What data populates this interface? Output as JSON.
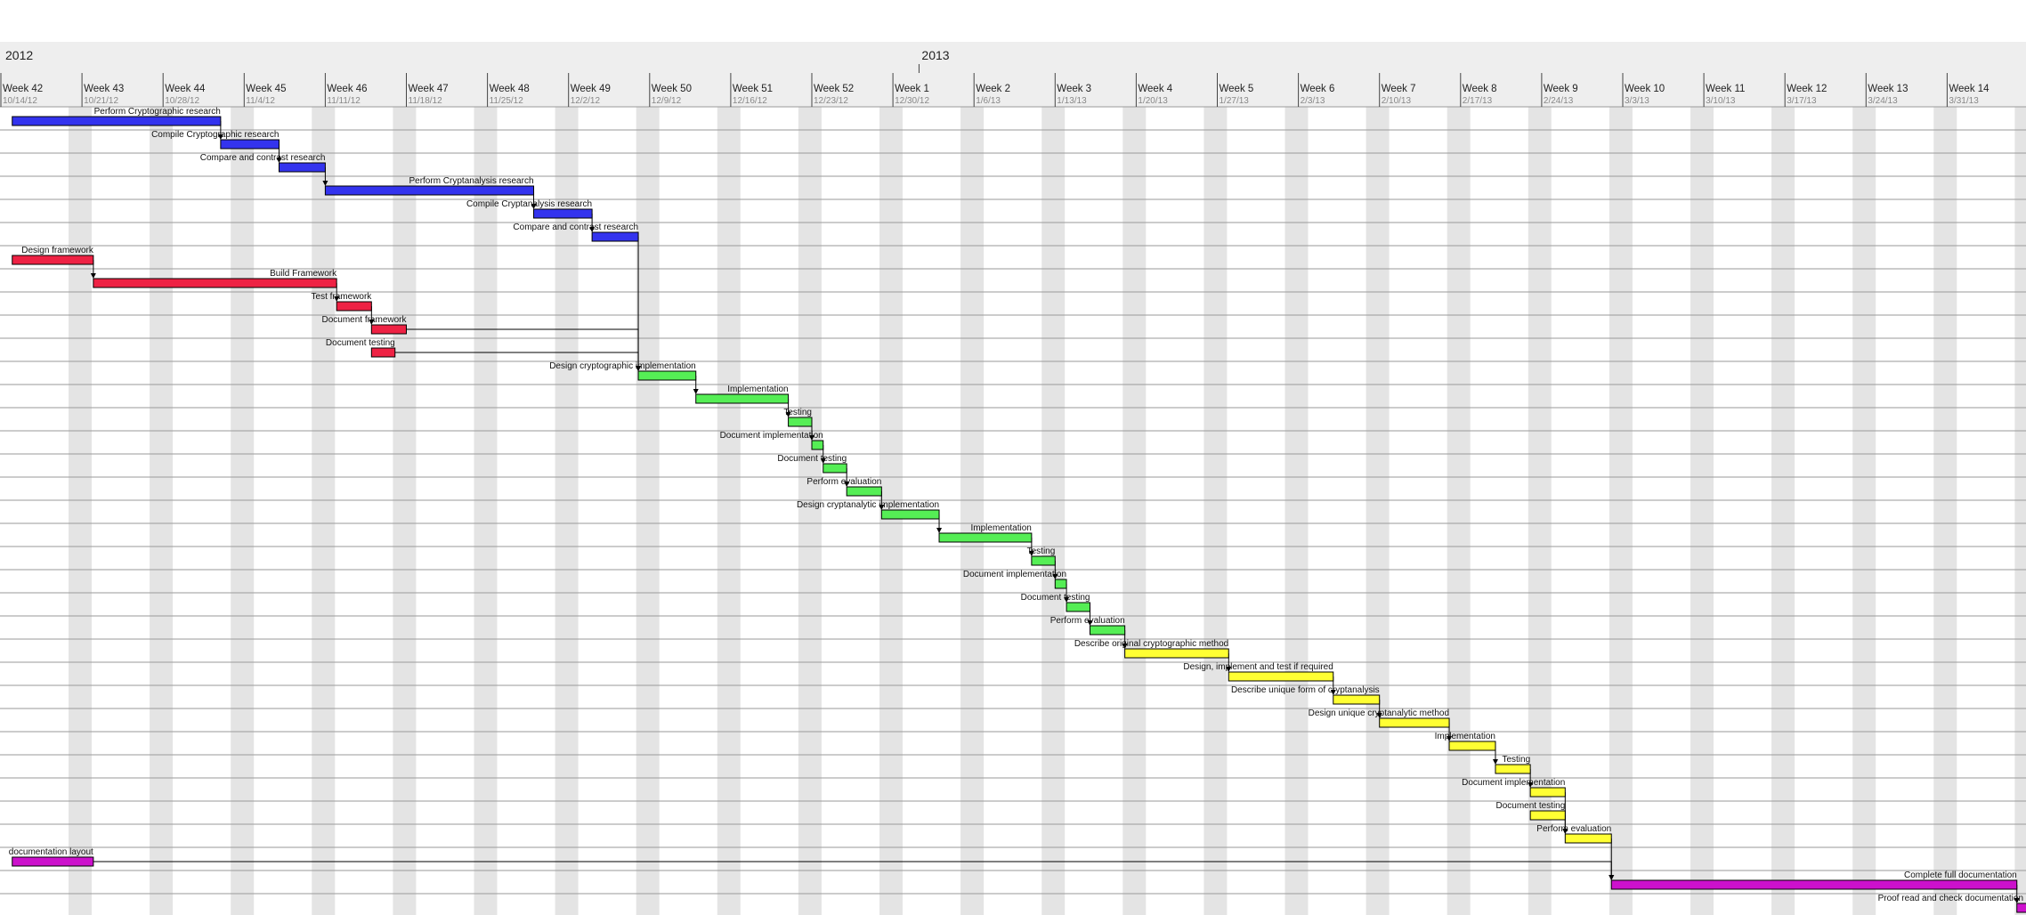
{
  "header": {
    "years": [
      {
        "label": "2012",
        "week_index": 0
      },
      {
        "label": "2013",
        "week_index": 11.3
      }
    ]
  },
  "colors": {
    "research": "#3333ee",
    "framework": "#ee2244",
    "implementation": "#55ee55",
    "documentation": "#ffff33",
    "final": "#cc11cc",
    "weekend_stripe": "#e4e4e4",
    "grid_line": "#9a9a9a",
    "header_bg": "#eeeeee"
  },
  "chart_data": {
    "type": "gantt",
    "x_unit": "weeks from Week 42 (10/14/12)",
    "weeks": [
      {
        "label": "Week 42",
        "date": "10/14/12"
      },
      {
        "label": "Week 43",
        "date": "10/21/12"
      },
      {
        "label": "Week 44",
        "date": "10/28/12"
      },
      {
        "label": "Week 45",
        "date": "11/4/12"
      },
      {
        "label": "Week 46",
        "date": "11/11/12"
      },
      {
        "label": "Week 47",
        "date": "11/18/12"
      },
      {
        "label": "Week 48",
        "date": "11/25/12"
      },
      {
        "label": "Week 49",
        "date": "12/2/12"
      },
      {
        "label": "Week 50",
        "date": "12/9/12"
      },
      {
        "label": "Week 51",
        "date": "12/16/12"
      },
      {
        "label": "Week 52",
        "date": "12/23/12"
      },
      {
        "label": "Week 1",
        "date": "12/30/12"
      },
      {
        "label": "Week 2",
        "date": "1/6/13"
      },
      {
        "label": "Week 3",
        "date": "1/13/13"
      },
      {
        "label": "Week 4",
        "date": "1/20/13"
      },
      {
        "label": "Week 5",
        "date": "1/27/13"
      },
      {
        "label": "Week 6",
        "date": "2/3/13"
      },
      {
        "label": "Week 7",
        "date": "2/10/13"
      },
      {
        "label": "Week 8",
        "date": "2/17/13"
      },
      {
        "label": "Week 9",
        "date": "2/24/13"
      },
      {
        "label": "Week 10",
        "date": "3/3/13"
      },
      {
        "label": "Week 11",
        "date": "3/10/13"
      },
      {
        "label": "Week 12",
        "date": "3/17/13"
      },
      {
        "label": "Week 13",
        "date": "3/24/13"
      },
      {
        "label": "Week 14",
        "date": "3/31/13"
      }
    ],
    "tasks": [
      {
        "name": "Perform Cryptographic research",
        "start": 0.14,
        "end": 2.71,
        "group": "research",
        "dep": 1
      },
      {
        "name": "Compile Cryptographic research",
        "start": 2.71,
        "end": 3.43,
        "group": "research",
        "dep": 2
      },
      {
        "name": "Compare and contrast research",
        "start": 3.43,
        "end": 4.0,
        "group": "research",
        "dep": 3
      },
      {
        "name": "Perform Cryptanalysis research",
        "start": 4.0,
        "end": 6.57,
        "group": "research",
        "dep": 4
      },
      {
        "name": "Compile Cryptanalysis research",
        "start": 6.57,
        "end": 7.29,
        "group": "research",
        "dep": 5
      },
      {
        "name": "Compare and contrast research",
        "start": 7.29,
        "end": 7.86,
        "group": "research",
        "dep": 11
      },
      {
        "name": "Design framework",
        "start": 0.14,
        "end": 1.14,
        "group": "framework",
        "dep": 7
      },
      {
        "name": "Build Framework",
        "start": 1.14,
        "end": 4.14,
        "group": "framework",
        "dep": 8
      },
      {
        "name": "Test framework",
        "start": 4.14,
        "end": 4.57,
        "group": "framework",
        "dep": 9
      },
      {
        "name": "Document framework",
        "start": 4.57,
        "end": 5.0,
        "group": "framework",
        "dep": 11
      },
      {
        "name": "Document testing",
        "start": 4.57,
        "end": 4.86,
        "group": "framework",
        "dep": 11
      },
      {
        "name": "Design cryptographic implementation",
        "start": 7.86,
        "end": 8.57,
        "group": "implementation",
        "dep": 12
      },
      {
        "name": "Implementation",
        "start": 8.57,
        "end": 9.71,
        "group": "implementation",
        "dep": 13
      },
      {
        "name": "Testing",
        "start": 9.71,
        "end": 10.0,
        "group": "implementation",
        "dep": 14
      },
      {
        "name": "Document implementation",
        "start": 10.0,
        "end": 10.14,
        "group": "implementation",
        "dep": 15
      },
      {
        "name": "Document testing",
        "start": 10.14,
        "end": 10.43,
        "group": "implementation",
        "dep": 16
      },
      {
        "name": "Perform evaluation",
        "start": 10.43,
        "end": 10.86,
        "group": "implementation",
        "dep": 17
      },
      {
        "name": "Design cryptanalytic implementation",
        "start": 10.86,
        "end": 11.57,
        "group": "implementation",
        "dep": 18
      },
      {
        "name": "Implementation",
        "start": 11.57,
        "end": 12.71,
        "group": "implementation",
        "dep": 19
      },
      {
        "name": "Testing",
        "start": 12.71,
        "end": 13.0,
        "group": "implementation",
        "dep": 20
      },
      {
        "name": "Document implementation",
        "start": 13.0,
        "end": 13.14,
        "group": "implementation",
        "dep": 21
      },
      {
        "name": "Document testing",
        "start": 13.14,
        "end": 13.43,
        "group": "implementation",
        "dep": 22
      },
      {
        "name": "Perform evaluation",
        "start": 13.43,
        "end": 13.86,
        "group": "implementation",
        "dep": 23
      },
      {
        "name": "Describe original cryptographic method",
        "start": 13.86,
        "end": 15.14,
        "group": "documentation",
        "dep": 24
      },
      {
        "name": "Design, implement and test if required",
        "start": 15.14,
        "end": 16.43,
        "group": "documentation",
        "dep": 25
      },
      {
        "name": "Describe unique form of cryptanalysis",
        "start": 16.43,
        "end": 17.0,
        "group": "documentation",
        "dep": 26
      },
      {
        "name": "Design unique cryptanalytic method",
        "start": 17.0,
        "end": 17.86,
        "group": "documentation",
        "dep": 27
      },
      {
        "name": "Implementation",
        "start": 17.86,
        "end": 18.43,
        "group": "documentation",
        "dep": 28
      },
      {
        "name": "Testing",
        "start": 18.43,
        "end": 18.86,
        "group": "documentation",
        "dep": 29
      },
      {
        "name": "Document implementation",
        "start": 18.86,
        "end": 19.29,
        "group": "documentation",
        "dep": 31
      },
      {
        "name": "Document testing",
        "start": 18.86,
        "end": 19.29,
        "group": "documentation",
        "dep": 31
      },
      {
        "name": "Perform evaluation",
        "start": 19.29,
        "end": 19.86,
        "group": "documentation",
        "dep": 33
      },
      {
        "name": "documentation layout",
        "start": 0.14,
        "end": 1.14,
        "group": "final",
        "dep": 33
      },
      {
        "name": "Complete full documentation",
        "start": 19.86,
        "end": 24.86,
        "group": "final",
        "dep": 34
      },
      {
        "name": "Proof read and check documentation",
        "start": 24.86,
        "end": 25.3,
        "group": "final",
        "dep": null
      }
    ]
  }
}
